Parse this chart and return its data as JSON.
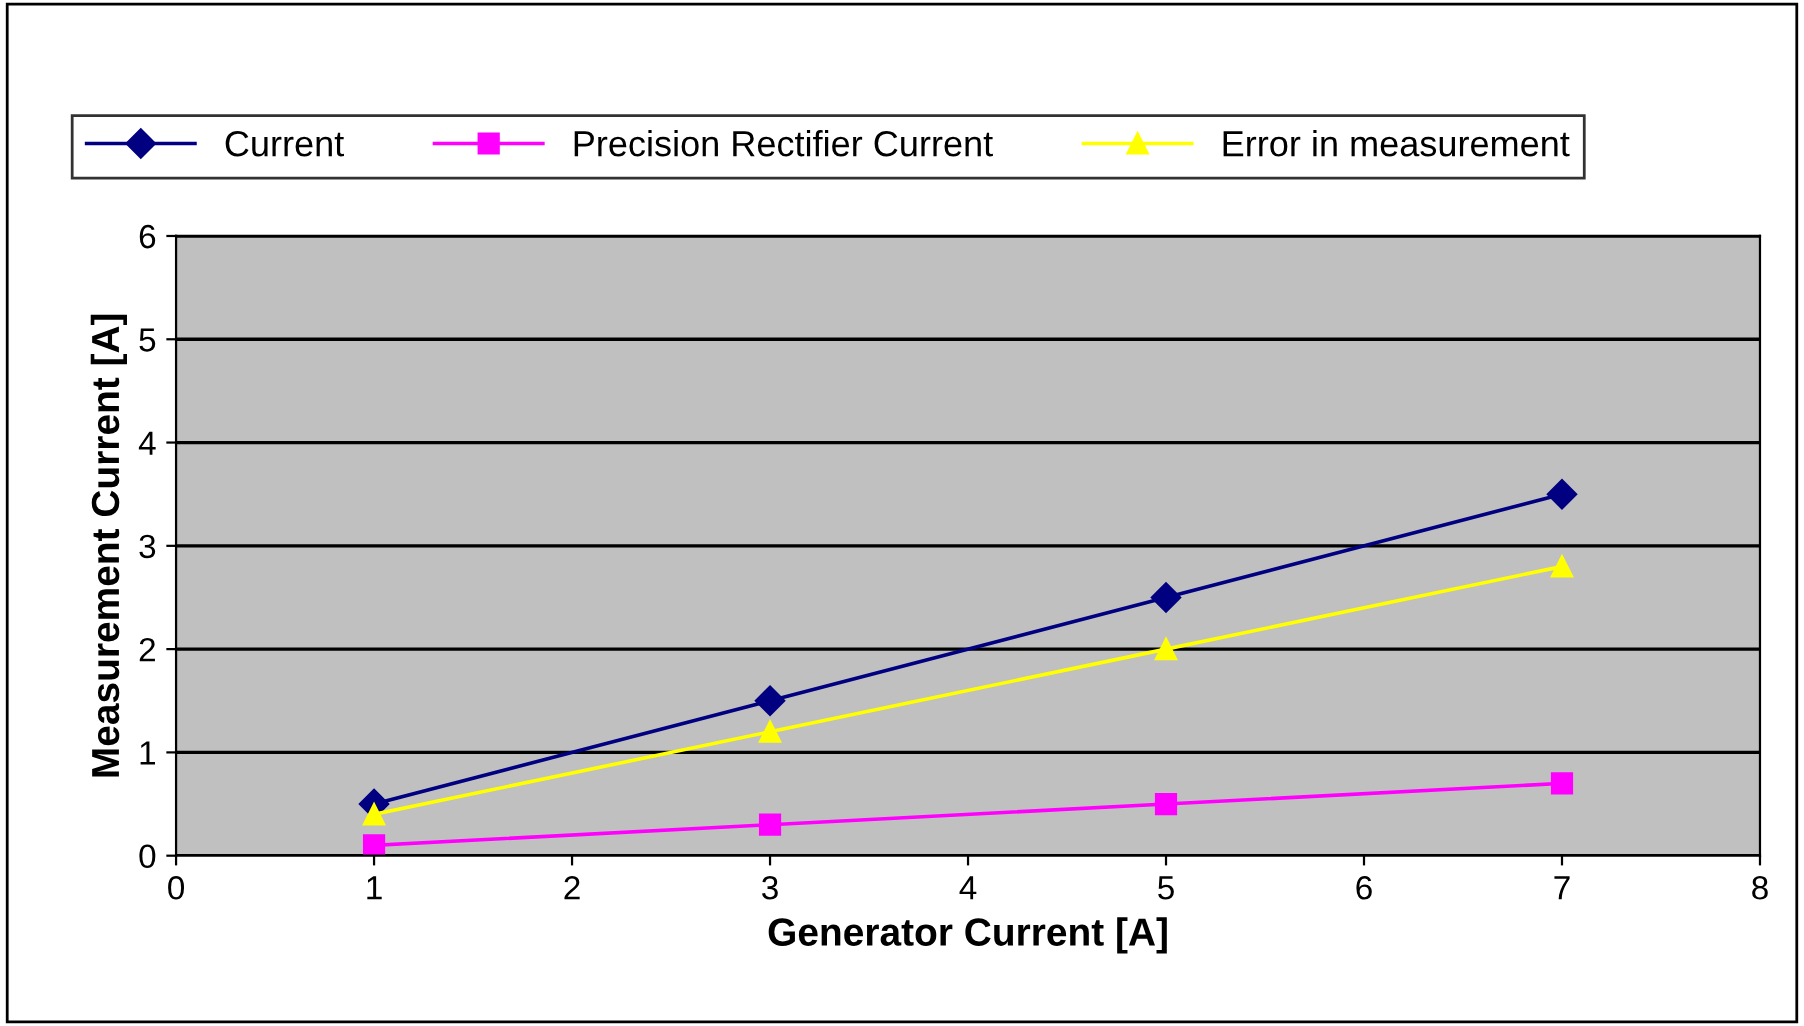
{
  "chart_data": {
    "type": "line",
    "xlabel": "Generator Current [A]",
    "ylabel": "Measurement Current [A]",
    "x": [
      1,
      3,
      5,
      7
    ],
    "series": [
      {
        "name": "Current",
        "color": "#000080",
        "marker": "diamond",
        "values": [
          0.5,
          1.5,
          2.5,
          3.5
        ]
      },
      {
        "name": "Precision Rectifier Current",
        "color": "#ff00ff",
        "marker": "square",
        "values": [
          0.1,
          0.3,
          0.5,
          0.7
        ]
      },
      {
        "name": "Error in measurement",
        "color": "#ffff00",
        "marker": "triangle",
        "values": [
          0.4,
          1.2,
          2.0,
          2.8
        ]
      }
    ],
    "xlim": [
      0,
      8
    ],
    "xticks": [
      0,
      1,
      2,
      3,
      4,
      5,
      6,
      7,
      8
    ],
    "ylim": [
      0,
      6
    ],
    "yticks": [
      0,
      1,
      2,
      3,
      4,
      5,
      6
    ],
    "grid": "y",
    "legend": "top"
  }
}
